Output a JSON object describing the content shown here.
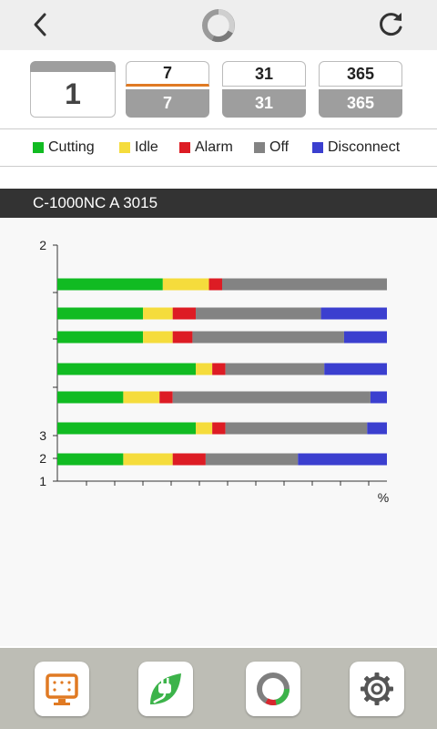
{
  "header": {
    "back_icon": "chevron-left-icon",
    "logo_icon": "ring-logo-icon",
    "refresh_icon": "refresh-icon"
  },
  "periods": {
    "selected": "1",
    "options": [
      {
        "top": "7",
        "bottom": "7",
        "active": true
      },
      {
        "top": "31",
        "bottom": "31",
        "active": false
      },
      {
        "top": "365",
        "bottom": "365",
        "active": false
      }
    ]
  },
  "legend": [
    {
      "label": "Cutting",
      "color": "#11bb22"
    },
    {
      "label": "Idle",
      "color": "#f5dc3c"
    },
    {
      "label": "Alarm",
      "color": "#dd1c24"
    },
    {
      "label": "Off",
      "color": "#838383"
    },
    {
      "label": "Disconnect",
      "color": "#3b3fcf"
    }
  ],
  "machine": {
    "name": "C-1000NC A 3015"
  },
  "chart_data": {
    "type": "bar",
    "orientation": "horizontal",
    "stacked": true,
    "xlabel": "%",
    "xlim": [
      0,
      100
    ],
    "y_tick_labels": [
      "2",
      "",
      "",
      "",
      "3",
      "2",
      "1"
    ],
    "rows": [
      {
        "Cutting": 32,
        "Idle": 14,
        "Alarm": 4,
        "Off": 50,
        "Disconnect": 0
      },
      {
        "Cutting": 26,
        "Idle": 9,
        "Alarm": 7,
        "Off": 38,
        "Disconnect": 20
      },
      {
        "Cutting": 26,
        "Idle": 9,
        "Alarm": 6,
        "Off": 46,
        "Disconnect": 13
      },
      {
        "Cutting": 42,
        "Idle": 5,
        "Alarm": 4,
        "Off": 30,
        "Disconnect": 19
      },
      {
        "Cutting": 20,
        "Idle": 11,
        "Alarm": 4,
        "Off": 60,
        "Disconnect": 5
      },
      {
        "Cutting": 42,
        "Idle": 5,
        "Alarm": 4,
        "Off": 43,
        "Disconnect": 6
      },
      {
        "Cutting": 20,
        "Idle": 15,
        "Alarm": 10,
        "Off": 28,
        "Disconnect": 27
      }
    ],
    "series_order": [
      "Cutting",
      "Idle",
      "Alarm",
      "Off",
      "Disconnect"
    ]
  },
  "nav": [
    {
      "icon": "monitor-icon"
    },
    {
      "icon": "eco-plug-icon"
    },
    {
      "icon": "donut-chart-icon"
    },
    {
      "icon": "gear-icon"
    }
  ]
}
